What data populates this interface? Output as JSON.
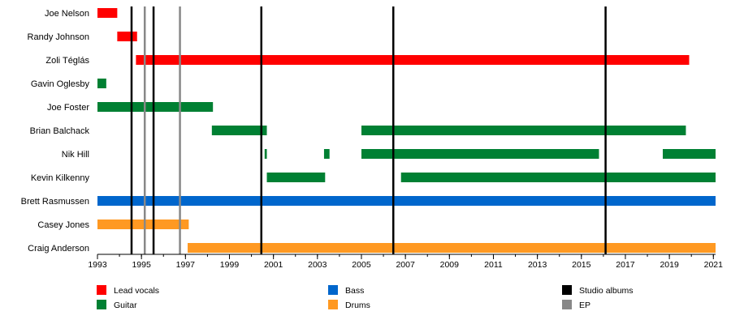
{
  "chart_data": {
    "type": "timeline",
    "title": "",
    "xlim": [
      1993,
      2021.1
    ],
    "xticks": [
      1993,
      1995,
      1997,
      1999,
      2001,
      2003,
      2005,
      2007,
      2009,
      2011,
      2013,
      2015,
      2017,
      2019,
      2021
    ],
    "colors": {
      "lead_vocals": "#ff0000",
      "guitar": "#008033",
      "bass": "#0066cc",
      "drums": "#ff9922",
      "studio_albums": "#000000",
      "ep": "#888888"
    },
    "members": [
      {
        "name": "Joe Nelson",
        "bars": [
          {
            "role": "lead_vocals",
            "start": 1993.0,
            "end": 1993.9
          }
        ]
      },
      {
        "name": "Randy Johnson",
        "bars": [
          {
            "role": "lead_vocals",
            "start": 1993.9,
            "end": 1994.8
          }
        ]
      },
      {
        "name": "Zoli Téglás",
        "bars": [
          {
            "role": "lead_vocals",
            "start": 1994.75,
            "end": 2019.9
          }
        ]
      },
      {
        "name": "Gavin Oglesby",
        "bars": [
          {
            "role": "guitar",
            "start": 1993.0,
            "end": 1993.4
          }
        ]
      },
      {
        "name": "Joe Foster",
        "bars": [
          {
            "role": "guitar",
            "start": 1993.0,
            "end": 1998.25
          }
        ]
      },
      {
        "name": "Brian Balchack",
        "bars": [
          {
            "role": "guitar",
            "start": 1998.2,
            "end": 2000.7
          },
          {
            "role": "guitar",
            "start": 2005.0,
            "end": 2019.75
          }
        ]
      },
      {
        "name": "Nik Hill",
        "bars": [
          {
            "role": "guitar",
            "start": 2000.6,
            "end": 2000.7
          },
          {
            "role": "guitar",
            "start": 2003.3,
            "end": 2003.55
          },
          {
            "role": "guitar",
            "start": 2005.0,
            "end": 2015.8
          },
          {
            "role": "guitar",
            "start": 2018.7,
            "end": 2021.1
          }
        ]
      },
      {
        "name": "Kevin Kilkenny",
        "bars": [
          {
            "role": "guitar",
            "start": 2000.7,
            "end": 2003.35
          },
          {
            "role": "guitar",
            "start": 2006.8,
            "end": 2021.1
          }
        ]
      },
      {
        "name": "Brett Rasmussen",
        "bars": [
          {
            "role": "bass",
            "start": 1993.0,
            "end": 2021.1
          }
        ]
      },
      {
        "name": "Casey Jones",
        "bars": [
          {
            "role": "drums",
            "start": 1993.0,
            "end": 1997.15
          }
        ]
      },
      {
        "name": "Craig Anderson",
        "bars": [
          {
            "role": "drums",
            "start": 1997.1,
            "end": 2021.1
          }
        ]
      }
    ],
    "studio_albums": [
      1994.55,
      1995.55,
      2000.45,
      2006.45,
      2016.1
    ],
    "eps": [
      1995.15,
      1996.75
    ],
    "legend": [
      {
        "role": "lead_vocals",
        "label": "Lead vocals"
      },
      {
        "role": "guitar",
        "label": "Guitar"
      },
      {
        "role": "bass",
        "label": "Bass"
      },
      {
        "role": "drums",
        "label": "Drums"
      },
      {
        "role": "studio_albums",
        "label": "Studio albums"
      },
      {
        "role": "ep",
        "label": "EP"
      }
    ]
  }
}
